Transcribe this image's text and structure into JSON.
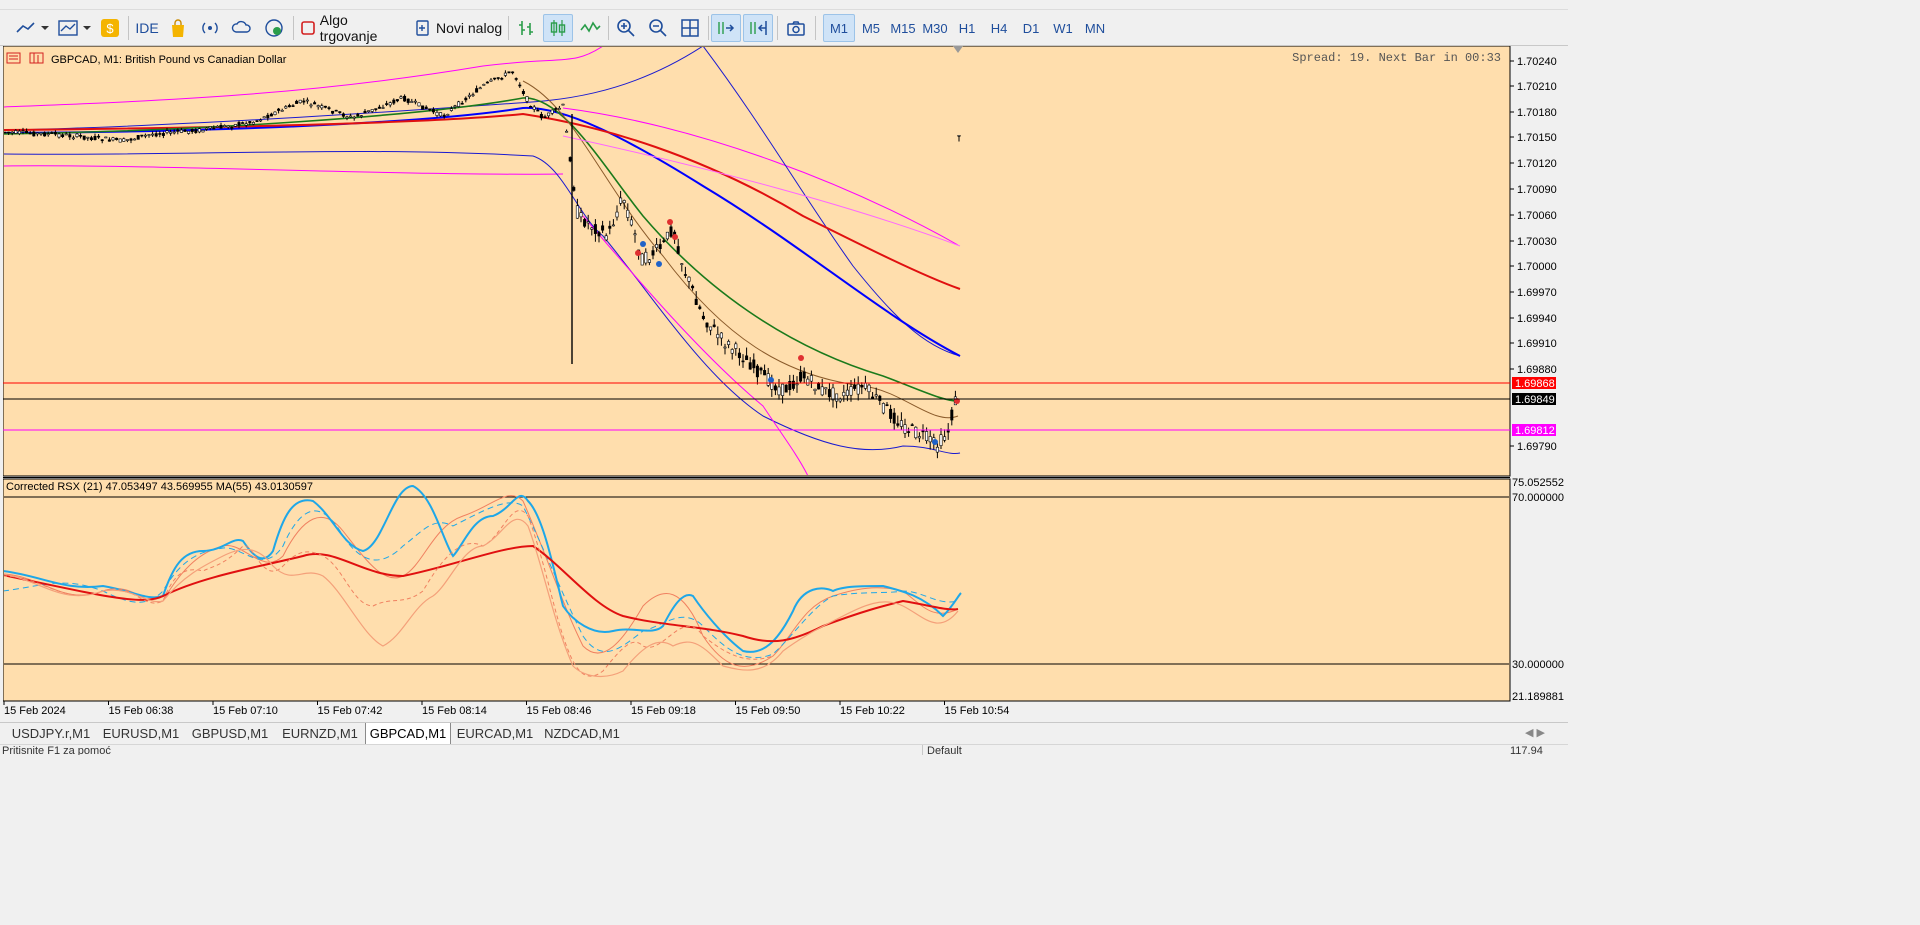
{
  "toolbar": {
    "ide_label": "IDE",
    "algo_label": "Algo trgovanje",
    "new_order_label": "Novi nalog",
    "timeframes": [
      "M1",
      "M5",
      "M15",
      "M30",
      "H1",
      "H4",
      "D1",
      "W1",
      "MN"
    ],
    "active_timeframe": "M1"
  },
  "chart": {
    "symbol_title": "GBPCAD, M1:  British Pound vs Canadian Dollar",
    "spread_info": "Spread: 19. Next Bar in 00:33",
    "background": "#ffdead",
    "price_ticks": [
      "1.70240",
      "1.70210",
      "1.70180",
      "1.70150",
      "1.70120",
      "1.70090",
      "1.70060",
      "1.70030",
      "1.70000",
      "1.69970",
      "1.69940",
      "1.69910",
      "1.69880",
      "1.69790"
    ],
    "price_markers": [
      {
        "value": "1.69868",
        "color": "#ff0000"
      },
      {
        "value": "1.69849",
        "color": "#000000"
      },
      {
        "value": "1.69812",
        "color": "#ff00ff"
      }
    ],
    "indicator_title": "Corrected RSX (21) 47.053497 43.569955 MA(55) 43.0130597",
    "indicator_ticks": [
      "75.052552",
      "70.000000",
      "30.000000",
      "21.189881"
    ],
    "time_labels": [
      "15 Feb 2024",
      "15 Feb 06:38",
      "15 Feb 07:10",
      "15 Feb 07:42",
      "15 Feb 08:14",
      "15 Feb 08:46",
      "15 Feb 09:18",
      "15 Feb 09:50",
      "15 Feb 10:22",
      "15 Feb 10:54"
    ]
  },
  "tabs": [
    {
      "label": "USDJPY.r,M1",
      "active": false
    },
    {
      "label": "EURUSD,M1",
      "active": false
    },
    {
      "label": "GBPUSD,M1",
      "active": false
    },
    {
      "label": "EURNZD,M1",
      "active": false
    },
    {
      "label": "GBPCAD,M1",
      "active": true
    },
    {
      "label": "EURCAD,M1",
      "active": false
    },
    {
      "label": "NZDCAD,M1",
      "active": false
    }
  ],
  "status": {
    "help_text": "Pritisnite F1 za pomoć",
    "profile": "Default",
    "traffic": "117.94"
  },
  "colors": {
    "accent_active": "#cfe3f7",
    "rsx_line": "#1ea7e8",
    "ma_line": "#e01010"
  }
}
